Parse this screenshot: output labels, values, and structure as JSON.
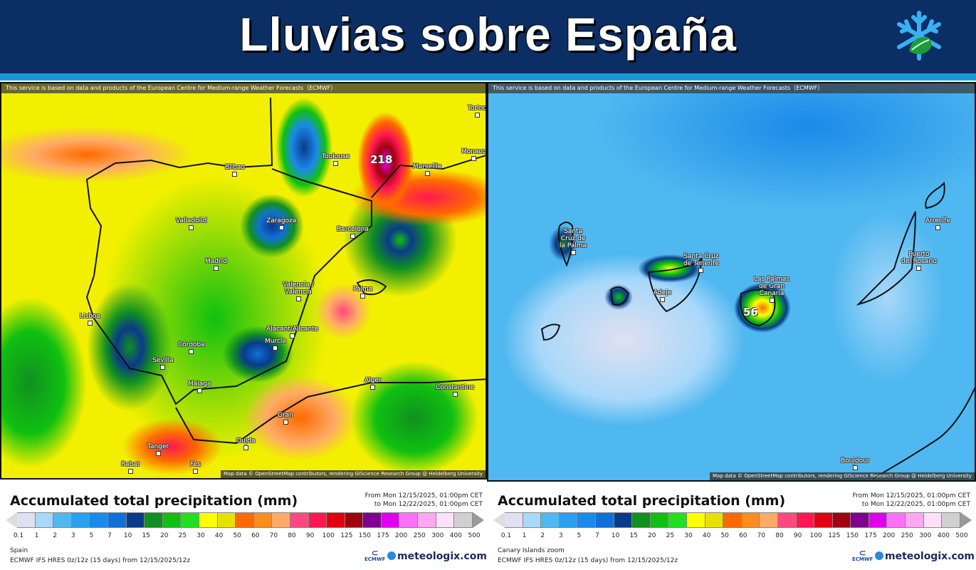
{
  "header": {
    "title": "Lluvias sobre España",
    "logo": "snowflake-leaf-logo"
  },
  "colors": {
    "header_bg": "#0b2e64",
    "stripe": "#1a98d4"
  },
  "attribution_top": "This service is based on data and products of the European Centre for Medium-range Weather Forecasts（ECMWF）",
  "attribution_bottom": "Map data © OpenStreetMap contributors, rendering GIScience Research Group @ Heidelberg University",
  "left_map": {
    "cities": [
      "Bilbao",
      "Valladolid",
      "Madrid",
      "Zaragoza",
      "Barcelona",
      "Toulouse",
      "Marseille",
      "Monaco",
      "Torino",
      "Valencia / València",
      "Palma",
      "Lisboa",
      "Córdoba",
      "Sevilla",
      "Málaga",
      "Murcia",
      "Alacant/Alicante",
      "Alger",
      "Constantine",
      "Tanger",
      "Oran",
      "Oujda",
      "Rabat",
      "Fès"
    ],
    "max_value": "218"
  },
  "right_map": {
    "cities": [
      "Santa\nCruz de\nla Palma",
      "Santa Cruz\nde Tenerife",
      "Adeje",
      "Las Palmas\nde Gran\nCanaria",
      "Arrecife",
      "Puerto\ndel Rosario",
      "Boujdour"
    ],
    "max_value": "56"
  },
  "legend": {
    "title": "Accumulated total precipitation (mm)",
    "from": "From Mon 12/15/2025, 01:00pm CET",
    "to": "to Mon 12/22/2025, 01:00pm CET",
    "ticks": [
      "0.1",
      "1",
      "2",
      "3",
      "5",
      "7",
      "10",
      "15",
      "20",
      "25",
      "30",
      "40",
      "50",
      "60",
      "70",
      "80",
      "90",
      "100",
      "125",
      "150",
      "175",
      "200",
      "250",
      "300",
      "400",
      "500"
    ],
    "colors": [
      "#e0e0f2",
      "#a8d8fa",
      "#50b8f0",
      "#2aa0f0",
      "#1a8ae8",
      "#1070d8",
      "#0a3a8a",
      "#109020",
      "#10c010",
      "#20e020",
      "#ffff00",
      "#e8e000",
      "#ff6a00",
      "#ff8c20",
      "#ffaa66",
      "#ff4880",
      "#ff1850",
      "#e00010",
      "#a00010",
      "#800090",
      "#e000f0",
      "#ff70f8",
      "#ffa8f0",
      "#ffe0f8",
      "#d0d0d0"
    ],
    "model": "ECMWF IFS HRES 0z/12z (15 days) from  12/15/2025/12z",
    "ecmwf": "ECMWF",
    "brand": "meteologix.com"
  },
  "left_legend": {
    "region": "Spain"
  },
  "right_legend": {
    "region": "Canary Islands zoom"
  }
}
